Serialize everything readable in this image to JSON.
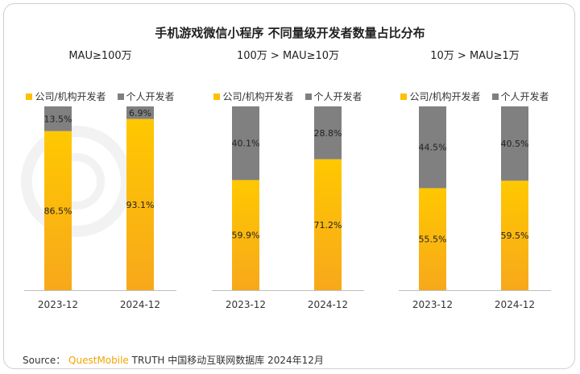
{
  "title": "手机游戏微信小程序 不同量级开发者数量占比分布",
  "colors": {
    "company_top": "#ffc800",
    "company_bottom": "#f7a81b",
    "individual": "#808080",
    "brand": "#f2a400"
  },
  "legend": [
    {
      "label": "公司/机构开发者",
      "color": "#ffc000"
    },
    {
      "label": "个人开发者",
      "color": "#7f7f7f"
    }
  ],
  "chart_data": [
    {
      "type": "bar",
      "stacked": true,
      "title": "MAU≥100万",
      "categories": [
        "2023-12",
        "2024-12"
      ],
      "series": [
        {
          "name": "公司/机构开发者",
          "values": [
            86.5,
            93.1
          ],
          "labels": [
            "86.5%",
            "93.1%"
          ]
        },
        {
          "name": "个人开发者",
          "values": [
            13.5,
            6.9
          ],
          "labels": [
            "13.5%",
            "6.9%"
          ]
        }
      ],
      "ylim": [
        0,
        100
      ]
    },
    {
      "type": "bar",
      "stacked": true,
      "title": "100万 > MAU≥10万",
      "categories": [
        "2023-12",
        "2024-12"
      ],
      "series": [
        {
          "name": "公司/机构开发者",
          "values": [
            59.9,
            71.2
          ],
          "labels": [
            "59.9%",
            "71.2%"
          ]
        },
        {
          "name": "个人开发者",
          "values": [
            40.1,
            28.8
          ],
          "labels": [
            "40.1%",
            "28.8%"
          ]
        }
      ],
      "ylim": [
        0,
        100
      ]
    },
    {
      "type": "bar",
      "stacked": true,
      "title": "10万 > MAU≥1万",
      "categories": [
        "2023-12",
        "2024-12"
      ],
      "series": [
        {
          "name": "公司/机构开发者",
          "values": [
            55.5,
            59.5
          ],
          "labels": [
            "55.5%",
            "59.5%"
          ]
        },
        {
          "name": "个人开发者",
          "values": [
            44.5,
            40.5
          ],
          "labels": [
            "44.5%",
            "40.5%"
          ]
        }
      ],
      "ylim": [
        0,
        100
      ]
    }
  ],
  "footer": {
    "source_label": "Source：",
    "brand": "QuestMobile",
    "rest": "TRUTH 中国移动互联网数据库 2024年12月"
  }
}
